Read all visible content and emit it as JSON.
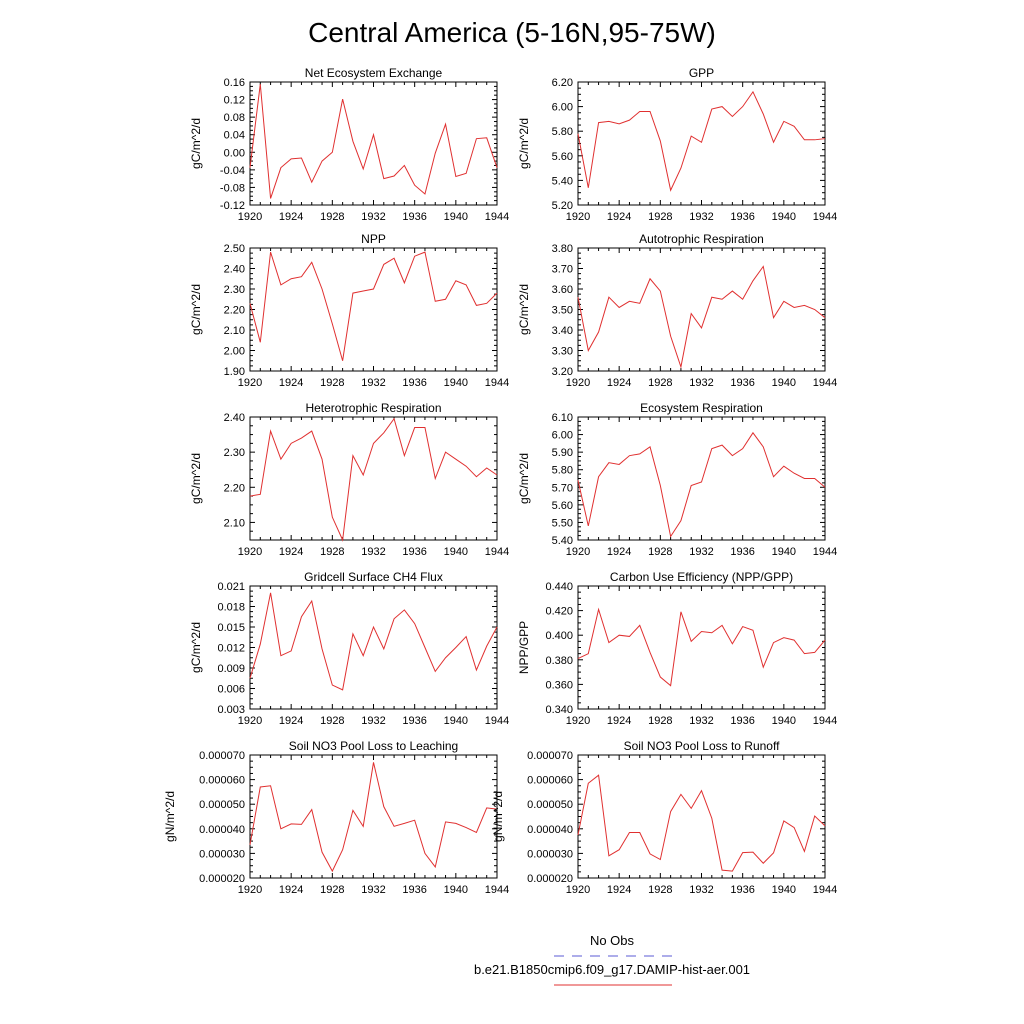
{
  "title": "Central America (5-16N,95-75W)",
  "legend": {
    "items": [
      {
        "label": "No Obs",
        "color": "#5b5bd6",
        "style": "dashed"
      },
      {
        "label": "b.e21.B1850cmip6.f09_g17.DAMIP-hist-aer.001",
        "color": "#e03030",
        "style": "solid"
      }
    ]
  },
  "chart_data": [
    {
      "type": "line",
      "title": "Net Ecosystem Exchange",
      "ylabel": "gC/m^2/d",
      "xlabel": "",
      "xlim": [
        1920,
        1944
      ],
      "ylim": [
        -0.12,
        0.16
      ],
      "xticks": [
        1920,
        1924,
        1928,
        1932,
        1936,
        1940,
        1944
      ],
      "yticks": [
        -0.12,
        -0.08,
        -0.04,
        0.0,
        0.04,
        0.08,
        0.12,
        0.16
      ],
      "ydec": 2,
      "x": [
        1920,
        1921,
        1922,
        1923,
        1924,
        1925,
        1926,
        1927,
        1928,
        1929,
        1930,
        1931,
        1932,
        1933,
        1934,
        1935,
        1936,
        1937,
        1938,
        1939,
        1940,
        1941,
        1942,
        1943,
        1944
      ],
      "series": [
        {
          "color": "#e03030",
          "values": [
            -0.035,
            0.155,
            -0.105,
            -0.035,
            -0.015,
            -0.013,
            -0.068,
            -0.02,
            0.0,
            0.121,
            0.025,
            -0.038,
            0.04,
            -0.06,
            -0.054,
            -0.03,
            -0.075,
            -0.095,
            -0.002,
            0.064,
            -0.055,
            -0.048,
            0.031,
            0.033,
            -0.035
          ]
        }
      ]
    },
    {
      "type": "line",
      "title": "GPP",
      "ylabel": "gC/m^2/d",
      "xlabel": "",
      "xlim": [
        1920,
        1944
      ],
      "ylim": [
        5.2,
        6.2
      ],
      "xticks": [
        1920,
        1924,
        1928,
        1932,
        1936,
        1940,
        1944
      ],
      "yticks": [
        5.2,
        5.4,
        5.6,
        5.8,
        6.0,
        6.2
      ],
      "ydec": 2,
      "x": [
        1920,
        1921,
        1922,
        1923,
        1924,
        1925,
        1926,
        1927,
        1928,
        1929,
        1930,
        1931,
        1932,
        1933,
        1934,
        1935,
        1936,
        1937,
        1938,
        1939,
        1940,
        1941,
        1942,
        1943,
        1944
      ],
      "series": [
        {
          "color": "#e03030",
          "values": [
            5.78,
            5.34,
            5.87,
            5.88,
            5.86,
            5.89,
            5.96,
            5.96,
            5.72,
            5.32,
            5.5,
            5.76,
            5.71,
            5.98,
            6.0,
            5.92,
            6.0,
            6.12,
            5.94,
            5.71,
            5.88,
            5.84,
            5.73,
            5.73,
            5.74
          ]
        }
      ]
    },
    {
      "type": "line",
      "title": "NPP",
      "ylabel": "gC/m^2/d",
      "xlabel": "",
      "xlim": [
        1920,
        1944
      ],
      "ylim": [
        1.9,
        2.5
      ],
      "xticks": [
        1920,
        1924,
        1928,
        1932,
        1936,
        1940,
        1944
      ],
      "yticks": [
        1.9,
        2.0,
        2.1,
        2.2,
        2.3,
        2.4,
        2.5
      ],
      "ydec": 2,
      "x": [
        1920,
        1921,
        1922,
        1923,
        1924,
        1925,
        1926,
        1927,
        1928,
        1929,
        1930,
        1931,
        1932,
        1933,
        1934,
        1935,
        1936,
        1937,
        1938,
        1939,
        1940,
        1941,
        1942,
        1943,
        1944
      ],
      "series": [
        {
          "color": "#e03030",
          "values": [
            2.23,
            2.04,
            2.48,
            2.32,
            2.35,
            2.36,
            2.43,
            2.3,
            2.13,
            1.95,
            2.28,
            2.29,
            2.3,
            2.42,
            2.45,
            2.33,
            2.46,
            2.48,
            2.24,
            2.25,
            2.34,
            2.32,
            2.22,
            2.23,
            2.28
          ]
        }
      ]
    },
    {
      "type": "line",
      "title": "Autotrophic Respiration",
      "ylabel": "gC/m^2/d",
      "xlabel": "",
      "xlim": [
        1920,
        1944
      ],
      "ylim": [
        3.2,
        3.8
      ],
      "xticks": [
        1920,
        1924,
        1928,
        1932,
        1936,
        1940,
        1944
      ],
      "yticks": [
        3.2,
        3.3,
        3.4,
        3.5,
        3.6,
        3.7,
        3.8
      ],
      "ydec": 2,
      "x": [
        1920,
        1921,
        1922,
        1923,
        1924,
        1925,
        1926,
        1927,
        1928,
        1929,
        1930,
        1931,
        1932,
        1933,
        1934,
        1935,
        1936,
        1937,
        1938,
        1939,
        1940,
        1941,
        1942,
        1943,
        1944
      ],
      "series": [
        {
          "color": "#e03030",
          "values": [
            3.56,
            3.3,
            3.39,
            3.56,
            3.51,
            3.54,
            3.53,
            3.65,
            3.59,
            3.37,
            3.22,
            3.48,
            3.41,
            3.56,
            3.55,
            3.59,
            3.55,
            3.64,
            3.71,
            3.46,
            3.54,
            3.51,
            3.52,
            3.5,
            3.46
          ]
        }
      ]
    },
    {
      "type": "line",
      "title": "Heterotrophic Respiration",
      "ylabel": "gC/m^2/d",
      "xlabel": "",
      "xlim": [
        1920,
        1944
      ],
      "ylim": [
        2.05,
        2.4
      ],
      "xticks": [
        1920,
        1924,
        1928,
        1932,
        1936,
        1940,
        1944
      ],
      "yticks": [
        2.1,
        2.2,
        2.3,
        2.4
      ],
      "ydec": 2,
      "x": [
        1920,
        1921,
        1922,
        1923,
        1924,
        1925,
        1926,
        1927,
        1928,
        1929,
        1930,
        1931,
        1932,
        1933,
        1934,
        1935,
        1936,
        1937,
        1938,
        1939,
        1940,
        1941,
        1942,
        1943,
        1944
      ],
      "series": [
        {
          "color": "#e03030",
          "values": [
            2.175,
            2.18,
            2.36,
            2.28,
            2.325,
            2.34,
            2.36,
            2.28,
            2.115,
            2.05,
            2.29,
            2.235,
            2.325,
            2.355,
            2.395,
            2.29,
            2.37,
            2.37,
            2.225,
            2.3,
            2.28,
            2.26,
            2.23,
            2.255,
            2.235
          ]
        }
      ]
    },
    {
      "type": "line",
      "title": "Ecosystem Respiration",
      "ylabel": "gC/m^2/d",
      "xlabel": "",
      "xlim": [
        1920,
        1944
      ],
      "ylim": [
        5.4,
        6.1
      ],
      "xticks": [
        1920,
        1924,
        1928,
        1932,
        1936,
        1940,
        1944
      ],
      "yticks": [
        5.4,
        5.5,
        5.6,
        5.7,
        5.8,
        5.9,
        6.0,
        6.1
      ],
      "ydec": 2,
      "x": [
        1920,
        1921,
        1922,
        1923,
        1924,
        1925,
        1926,
        1927,
        1928,
        1929,
        1930,
        1931,
        1932,
        1933,
        1934,
        1935,
        1936,
        1937,
        1938,
        1939,
        1940,
        1941,
        1942,
        1943,
        1944
      ],
      "series": [
        {
          "color": "#e03030",
          "values": [
            5.74,
            5.48,
            5.76,
            5.84,
            5.83,
            5.88,
            5.89,
            5.93,
            5.71,
            5.42,
            5.51,
            5.71,
            5.73,
            5.92,
            5.94,
            5.88,
            5.92,
            6.01,
            5.93,
            5.76,
            5.82,
            5.78,
            5.75,
            5.75,
            5.7
          ]
        }
      ]
    },
    {
      "type": "line",
      "title": "Gridcell Surface CH4 Flux",
      "ylabel": "gC/m^2/d",
      "xlabel": "",
      "xlim": [
        1920,
        1944
      ],
      "ylim": [
        0.003,
        0.021
      ],
      "xticks": [
        1920,
        1924,
        1928,
        1932,
        1936,
        1940,
        1944
      ],
      "yticks": [
        0.003,
        0.006,
        0.009,
        0.012,
        0.015,
        0.018,
        0.021
      ],
      "ydec": 3,
      "x": [
        1920,
        1921,
        1922,
        1923,
        1924,
        1925,
        1926,
        1927,
        1928,
        1929,
        1930,
        1931,
        1932,
        1933,
        1934,
        1935,
        1936,
        1937,
        1938,
        1939,
        1940,
        1941,
        1942,
        1943,
        1944
      ],
      "series": [
        {
          "color": "#e03030",
          "values": [
            0.0075,
            0.0125,
            0.02,
            0.0108,
            0.0115,
            0.0165,
            0.0188,
            0.0118,
            0.0065,
            0.0058,
            0.014,
            0.0108,
            0.015,
            0.0118,
            0.0162,
            0.0175,
            0.0155,
            0.012,
            0.0085,
            0.0105,
            0.012,
            0.0136,
            0.0087,
            0.0122,
            0.015
          ]
        }
      ]
    },
    {
      "type": "line",
      "title": "Carbon Use Efficiency (NPP/GPP)",
      "ylabel": "NPP/GPP",
      "xlabel": "",
      "xlim": [
        1920,
        1944
      ],
      "ylim": [
        0.34,
        0.44
      ],
      "xticks": [
        1920,
        1924,
        1928,
        1932,
        1936,
        1940,
        1944
      ],
      "yticks": [
        0.34,
        0.36,
        0.38,
        0.4,
        0.42,
        0.44
      ],
      "ydec": 3,
      "x": [
        1920,
        1921,
        1922,
        1923,
        1924,
        1925,
        1926,
        1927,
        1928,
        1929,
        1930,
        1931,
        1932,
        1933,
        1934,
        1935,
        1936,
        1937,
        1938,
        1939,
        1940,
        1941,
        1942,
        1943,
        1944
      ],
      "series": [
        {
          "color": "#e03030",
          "values": [
            0.381,
            0.385,
            0.421,
            0.394,
            0.4,
            0.399,
            0.408,
            0.386,
            0.366,
            0.359,
            0.419,
            0.395,
            0.403,
            0.402,
            0.408,
            0.393,
            0.407,
            0.404,
            0.374,
            0.394,
            0.398,
            0.396,
            0.385,
            0.386,
            0.396
          ]
        }
      ]
    },
    {
      "type": "line",
      "title": "Soil NO3 Pool Loss to Leaching",
      "ylabel": "gN/m^2/d",
      "xlabel": "",
      "xlim": [
        1920,
        1944
      ],
      "ylim": [
        2e-05,
        7e-05
      ],
      "xticks": [
        1920,
        1924,
        1928,
        1932,
        1936,
        1940,
        1944
      ],
      "yticks": [
        2e-05,
        3e-05,
        4e-05,
        5e-05,
        6e-05,
        7e-05
      ],
      "ydec": 6,
      "x": [
        1920,
        1921,
        1922,
        1923,
        1924,
        1925,
        1926,
        1927,
        1928,
        1929,
        1930,
        1931,
        1932,
        1933,
        1934,
        1935,
        1936,
        1937,
        1938,
        1939,
        1940,
        1941,
        1942,
        1943,
        1944
      ],
      "series": [
        {
          "color": "#e03030",
          "values": [
            3.35e-05,
            5.7e-05,
            5.75e-05,
            4e-05,
            4.2e-05,
            4.18e-05,
            4.78e-05,
            3.05e-05,
            2.28e-05,
            3.15e-05,
            4.75e-05,
            4.1e-05,
            6.7e-05,
            4.9e-05,
            4.1e-05,
            4.22e-05,
            4.35e-05,
            3e-05,
            2.45e-05,
            4.28e-05,
            4.22e-05,
            4.05e-05,
            3.85e-05,
            4.85e-05,
            4.8e-05
          ]
        }
      ]
    },
    {
      "type": "line",
      "title": "Soil NO3 Pool Loss to Runoff",
      "ylabel": "gN/m^2/d",
      "xlabel": "",
      "xlim": [
        1920,
        1944
      ],
      "ylim": [
        2e-05,
        7e-05
      ],
      "xticks": [
        1920,
        1924,
        1928,
        1932,
        1936,
        1940,
        1944
      ],
      "yticks": [
        2e-05,
        3e-05,
        4e-05,
        5e-05,
        6e-05,
        7e-05
      ],
      "ydec": 6,
      "x": [
        1920,
        1921,
        1922,
        1923,
        1924,
        1925,
        1926,
        1927,
        1928,
        1929,
        1930,
        1931,
        1932,
        1933,
        1934,
        1935,
        1936,
        1937,
        1938,
        1939,
        1940,
        1941,
        1942,
        1943,
        1944
      ],
      "series": [
        {
          "color": "#e03030",
          "values": [
            3.75e-05,
            5.85e-05,
            6.18e-05,
            2.9e-05,
            3.15e-05,
            3.85e-05,
            3.85e-05,
            2.98e-05,
            2.75e-05,
            4.7e-05,
            5.4e-05,
            4.83e-05,
            5.55e-05,
            4.43e-05,
            2.32e-05,
            2.28e-05,
            3.03e-05,
            3.05e-05,
            2.6e-05,
            3.02e-05,
            4.32e-05,
            4.05e-05,
            3.08e-05,
            4.52e-05,
            4.12e-05
          ]
        }
      ]
    }
  ]
}
